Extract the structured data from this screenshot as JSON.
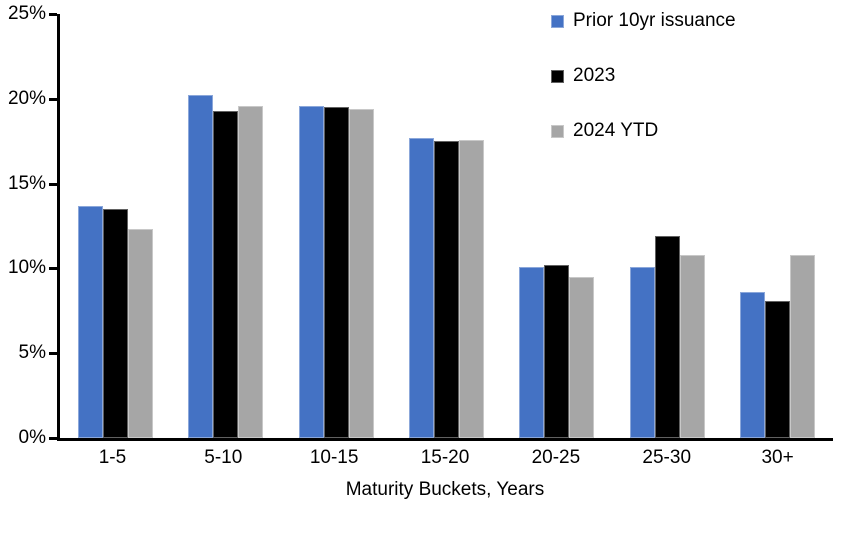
{
  "chart_data": {
    "type": "bar",
    "title": "",
    "xlabel": "Maturity Buckets, Years",
    "ylabel": "",
    "ylim": [
      0,
      25
    ],
    "yticks": [
      0,
      5,
      10,
      15,
      20,
      25
    ],
    "ytick_labels": [
      "0%",
      "5%",
      "10%",
      "15%",
      "20%",
      "25%"
    ],
    "categories": [
      "1-5",
      "5-10",
      "10-15",
      "15-20",
      "20-25",
      "25-30",
      "30+"
    ],
    "series": [
      {
        "name": "Prior 10yr issuance",
        "color": "#4472C4",
        "values": [
          13.7,
          20.2,
          19.6,
          17.7,
          10.1,
          10.1,
          8.6
        ]
      },
      {
        "name": "2023",
        "color": "#000000",
        "values": [
          13.5,
          19.3,
          19.5,
          17.5,
          10.2,
          11.9,
          8.1
        ]
      },
      {
        "name": "2024 YTD",
        "color": "#A6A6A6",
        "values": [
          12.3,
          19.6,
          19.4,
          17.6,
          9.5,
          10.8,
          10.8
        ]
      }
    ],
    "legend_position": "top-right",
    "grid": false,
    "axis_color": "#000000",
    "background_color": "#FFFFFF"
  }
}
